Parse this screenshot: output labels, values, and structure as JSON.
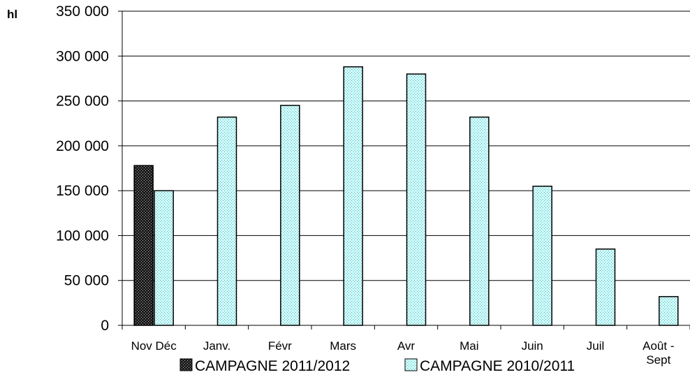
{
  "chart_data": {
    "type": "bar",
    "ylabel": "hl",
    "ylim": [
      0,
      350000
    ],
    "yticks": [
      0,
      50000,
      100000,
      150000,
      200000,
      250000,
      300000,
      350000
    ],
    "ytick_labels": [
      "0",
      "50 000",
      "100 000",
      "150 000",
      "200 000",
      "250 000",
      "300 000",
      "350 000"
    ],
    "categories": [
      "Nov Déc",
      "Janv.",
      "Févr",
      "Mars",
      "Avr",
      "Mai",
      "Juin",
      "Juil",
      "Août - Sept"
    ],
    "category_lines": [
      [
        "Nov Déc"
      ],
      [
        "Janv."
      ],
      [
        "Févr"
      ],
      [
        "Mars"
      ],
      [
        "Avr"
      ],
      [
        "Mai"
      ],
      [
        "Juin"
      ],
      [
        "Juil"
      ],
      [
        "Août -",
        "Sept"
      ]
    ],
    "series": [
      {
        "name": "CAMPAGNE 2011/2012",
        "values": [
          178000,
          null,
          null,
          null,
          null,
          null,
          null,
          null,
          null
        ],
        "color": "#222222",
        "pattern": "dark-dotted"
      },
      {
        "name": "CAMPAGNE 2010/2011",
        "values": [
          150000,
          232000,
          245000,
          288000,
          280000,
          232000,
          155000,
          85000,
          32000
        ],
        "color": "#ccffff",
        "pattern": "light-dotted"
      }
    ],
    "grid": true,
    "legend_position": "bottom"
  }
}
